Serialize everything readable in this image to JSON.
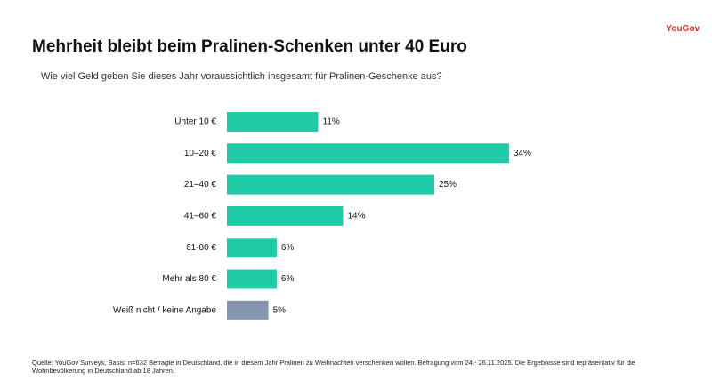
{
  "brand": "YouGov",
  "chart_data": {
    "type": "bar",
    "orientation": "horizontal",
    "title": "Mehrheit bleibt beim Pralinen-Schenken unter 40 Euro",
    "subtitle": "Wie viel Geld geben Sie dieses Jahr voraussichtlich insgesamt für Pralinen-Geschenke aus?",
    "categories": [
      "Unter 10 €",
      "10–20 €",
      "21–40 €",
      "41–60 €",
      "61-80 €",
      "Mehr als 80 €",
      "Weiß nicht / keine Angabe"
    ],
    "values": [
      11,
      34,
      25,
      14,
      6,
      6,
      5
    ],
    "value_labels": [
      "11%",
      "34%",
      "25%",
      "14%",
      "6%",
      "6%",
      "5%"
    ],
    "colors": [
      "#1ecba6",
      "#1ecba6",
      "#1ecba6",
      "#1ecba6",
      "#1ecba6",
      "#1ecba6",
      "#8596ae"
    ],
    "source": "Quelle: YouGov Surveys, Basis: n=632 Befragte in Deutschland, die in diesem Jahr Pralinen zu Weihnachten verschenken wollen. Befragung vom 24.- 26.11.2025. Die Ergebnisse sind repräsentativ für die Wohnbevölkerung in Deutschland ab 18 Jahren."
  }
}
